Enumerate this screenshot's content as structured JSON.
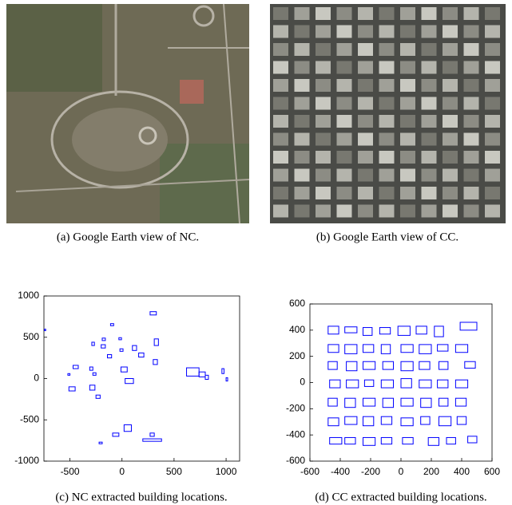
{
  "images": [
    {
      "caption": "(a) Google Earth view of NC."
    },
    {
      "caption": "(b) Google Earth view of CC."
    }
  ],
  "chart_data": [
    {
      "type": "outline",
      "caption": "(c) NC extracted building locations.",
      "color": "#0000ff",
      "xlim": [
        -750,
        1130
      ],
      "ylim": [
        -1000,
        1000
      ],
      "xticks": [
        -500,
        0,
        500,
        1000
      ],
      "yticks": [
        -1000,
        -500,
        0,
        500,
        1000
      ],
      "buildings": [
        [
          -745,
          580,
          12,
          18
        ],
        [
          -110,
          640,
          30,
          25
        ],
        [
          -30,
          470,
          25,
          25
        ],
        [
          -20,
          330,
          30,
          30
        ],
        [
          -190,
          460,
          30,
          30
        ],
        [
          -200,
          370,
          40,
          40
        ],
        [
          -140,
          250,
          40,
          40
        ],
        [
          -290,
          400,
          25,
          40
        ],
        [
          270,
          770,
          60,
          40
        ],
        [
          100,
          340,
          40,
          60
        ],
        [
          160,
          260,
          50,
          50
        ],
        [
          -10,
          80,
          60,
          60
        ],
        [
          30,
          -60,
          80,
          60
        ],
        [
          -310,
          100,
          30,
          40
        ],
        [
          -280,
          40,
          30,
          30
        ],
        [
          -470,
          120,
          50,
          40
        ],
        [
          -520,
          40,
          20,
          20
        ],
        [
          -510,
          -150,
          60,
          50
        ],
        [
          -310,
          -140,
          50,
          60
        ],
        [
          -250,
          -240,
          40,
          40
        ],
        [
          310,
          400,
          40,
          80
        ],
        [
          300,
          170,
          40,
          60
        ],
        [
          620,
          30,
          120,
          100
        ],
        [
          740,
          20,
          60,
          60
        ],
        [
          800,
          -10,
          30,
          50
        ],
        [
          960,
          60,
          20,
          60
        ],
        [
          1000,
          -30,
          15,
          40
        ],
        [
          -90,
          -700,
          60,
          40
        ],
        [
          20,
          -640,
          70,
          80
        ],
        [
          200,
          -760,
          180,
          30
        ],
        [
          270,
          -700,
          40,
          40
        ],
        [
          -220,
          -790,
          30,
          20
        ]
      ]
    },
    {
      "type": "outline",
      "caption": "(d) CC extracted building locations.",
      "color": "#0000ff",
      "xlim": [
        -600,
        600
      ],
      "ylim": [
        -600,
        600
      ],
      "xticks": [
        -600,
        -400,
        -200,
        0,
        200,
        400,
        600
      ],
      "yticks": [
        -600,
        -400,
        -200,
        0,
        200,
        400,
        600
      ],
      "buildings": [
        [
          -480,
          370,
          70,
          60
        ],
        [
          -370,
          380,
          80,
          45
        ],
        [
          -250,
          360,
          60,
          60
        ],
        [
          -140,
          370,
          70,
          50
        ],
        [
          -20,
          360,
          80,
          70
        ],
        [
          100,
          370,
          70,
          60
        ],
        [
          220,
          350,
          60,
          80
        ],
        [
          390,
          400,
          110,
          60
        ],
        [
          -480,
          230,
          70,
          60
        ],
        [
          -370,
          220,
          80,
          70
        ],
        [
          -250,
          230,
          70,
          60
        ],
        [
          -130,
          220,
          60,
          70
        ],
        [
          0,
          230,
          80,
          60
        ],
        [
          120,
          220,
          80,
          70
        ],
        [
          240,
          240,
          70,
          50
        ],
        [
          360,
          230,
          80,
          60
        ],
        [
          -480,
          100,
          60,
          60
        ],
        [
          -360,
          90,
          70,
          70
        ],
        [
          -250,
          100,
          80,
          60
        ],
        [
          -120,
          100,
          70,
          60
        ],
        [
          0,
          90,
          80,
          70
        ],
        [
          120,
          100,
          70,
          60
        ],
        [
          250,
          100,
          60,
          60
        ],
        [
          420,
          110,
          70,
          50
        ],
        [
          -470,
          -40,
          70,
          60
        ],
        [
          -360,
          -40,
          80,
          60
        ],
        [
          -240,
          -30,
          60,
          50
        ],
        [
          -130,
          -40,
          80,
          60
        ],
        [
          0,
          -40,
          70,
          70
        ],
        [
          120,
          -40,
          80,
          60
        ],
        [
          240,
          -40,
          70,
          60
        ],
        [
          360,
          -40,
          80,
          60
        ],
        [
          -480,
          -180,
          60,
          60
        ],
        [
          -370,
          -190,
          70,
          70
        ],
        [
          -250,
          -180,
          80,
          60
        ],
        [
          -120,
          -190,
          70,
          70
        ],
        [
          0,
          -180,
          80,
          60
        ],
        [
          130,
          -190,
          70,
          70
        ],
        [
          250,
          -180,
          60,
          60
        ],
        [
          360,
          -180,
          70,
          60
        ],
        [
          -480,
          -330,
          70,
          60
        ],
        [
          -370,
          -320,
          80,
          60
        ],
        [
          -250,
          -330,
          70,
          70
        ],
        [
          -130,
          -320,
          70,
          60
        ],
        [
          0,
          -330,
          80,
          60
        ],
        [
          130,
          -320,
          60,
          60
        ],
        [
          250,
          -330,
          80,
          70
        ],
        [
          370,
          -320,
          60,
          60
        ],
        [
          -470,
          -470,
          80,
          50
        ],
        [
          -370,
          -470,
          70,
          50
        ],
        [
          -250,
          -480,
          80,
          60
        ],
        [
          -130,
          -470,
          70,
          50
        ],
        [
          10,
          -470,
          70,
          50
        ],
        [
          180,
          -480,
          70,
          60
        ],
        [
          300,
          -470,
          60,
          50
        ],
        [
          440,
          -460,
          60,
          50
        ]
      ]
    }
  ]
}
